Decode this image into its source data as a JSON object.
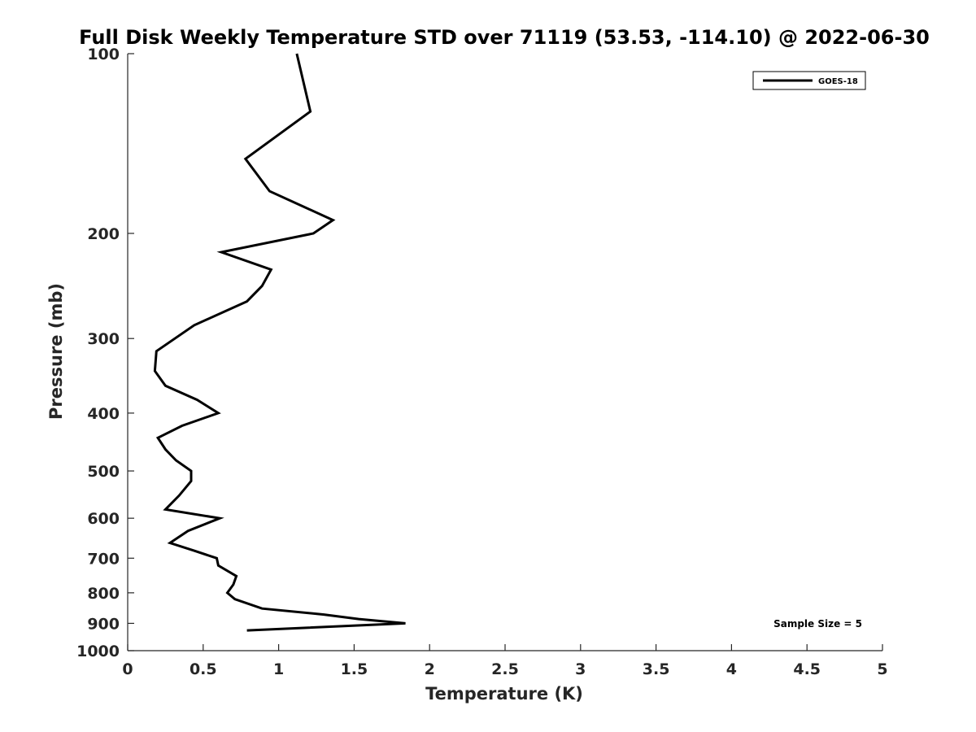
{
  "chart_data": {
    "type": "line",
    "title": "Full Disk Weekly Temperature STD over 71119 (53.53, -114.10) @ 2022-06-30",
    "xlabel": "Temperature (K)",
    "ylabel": "Pressure (mb)",
    "xlim": [
      0,
      5
    ],
    "ylim": [
      100,
      1000
    ],
    "y_scale": "log",
    "y_reversed": true,
    "x_ticks": [
      "0",
      "0.5",
      "1",
      "1.5",
      "2",
      "2.5",
      "3",
      "3.5",
      "4",
      "4.5",
      "5"
    ],
    "y_ticks": [
      "100",
      "200",
      "300",
      "400",
      "500",
      "600",
      "700",
      "800",
      "900",
      "1000"
    ],
    "grid": false,
    "legend_position": "top-right",
    "annotation": "Sample Size = 5",
    "series": [
      {
        "name": "GOES-18",
        "color": "#000000",
        "points": [
          {
            "x": 1.12,
            "p": 100
          },
          {
            "x": 1.21,
            "p": 125
          },
          {
            "x": 0.78,
            "p": 150
          },
          {
            "x": 0.94,
            "p": 170
          },
          {
            "x": 1.36,
            "p": 190
          },
          {
            "x": 1.23,
            "p": 200
          },
          {
            "x": 0.62,
            "p": 215
          },
          {
            "x": 0.95,
            "p": 230
          },
          {
            "x": 0.89,
            "p": 245
          },
          {
            "x": 0.79,
            "p": 260
          },
          {
            "x": 0.44,
            "p": 285
          },
          {
            "x": 0.19,
            "p": 315
          },
          {
            "x": 0.18,
            "p": 340
          },
          {
            "x": 0.25,
            "p": 360
          },
          {
            "x": 0.46,
            "p": 380
          },
          {
            "x": 0.6,
            "p": 400
          },
          {
            "x": 0.36,
            "p": 420
          },
          {
            "x": 0.2,
            "p": 440
          },
          {
            "x": 0.25,
            "p": 460
          },
          {
            "x": 0.32,
            "p": 480
          },
          {
            "x": 0.42,
            "p": 500
          },
          {
            "x": 0.42,
            "p": 520
          },
          {
            "x": 0.34,
            "p": 550
          },
          {
            "x": 0.25,
            "p": 580
          },
          {
            "x": 0.61,
            "p": 600
          },
          {
            "x": 0.4,
            "p": 630
          },
          {
            "x": 0.28,
            "p": 660
          },
          {
            "x": 0.44,
            "p": 680
          },
          {
            "x": 0.59,
            "p": 700
          },
          {
            "x": 0.6,
            "p": 720
          },
          {
            "x": 0.72,
            "p": 750
          },
          {
            "x": 0.7,
            "p": 775
          },
          {
            "x": 0.66,
            "p": 800
          },
          {
            "x": 0.71,
            "p": 820
          },
          {
            "x": 0.89,
            "p": 850
          },
          {
            "x": 1.3,
            "p": 870
          },
          {
            "x": 1.53,
            "p": 885
          },
          {
            "x": 1.84,
            "p": 900
          },
          {
            "x": 0.79,
            "p": 925
          }
        ]
      }
    ]
  }
}
